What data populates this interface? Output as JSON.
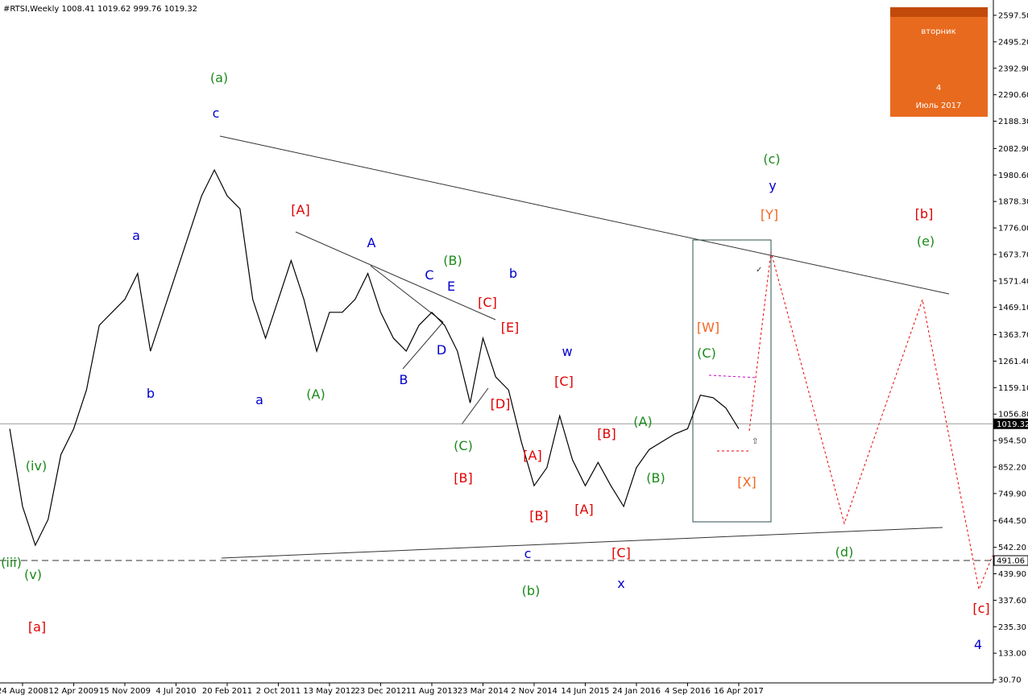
{
  "chart_data": {
    "type": "line",
    "title": "#RTSI,Weekly  1008.41 1019.62 999.76 1019.32",
    "categories": [
      null,
      "24 Aug 2008",
      null,
      null,
      null,
      "12 Apr 2009",
      null,
      null,
      null,
      "15 Nov 2009",
      null,
      null,
      null,
      "4 Jul 2010",
      null,
      null,
      null,
      "20 Feb 2011",
      null,
      null,
      null,
      "2 Oct 2011",
      null,
      null,
      null,
      "13 May 2012",
      null,
      null,
      null,
      "23 Dec 2012",
      null,
      null,
      null,
      "11 Aug 2013",
      null,
      null,
      null,
      "23 Mar 2014",
      null,
      null,
      null,
      "2 Nov 2014",
      null,
      null,
      null,
      "14 Jun 2015",
      null,
      null,
      null,
      "24 Jan 2016",
      null,
      null,
      null,
      "4 Sep 2016",
      null,
      null,
      null,
      "16 Apr 2017"
    ],
    "series": [
      {
        "color": "#000000",
        "values": [
          1000,
          700,
          550,
          650,
          900,
          1000,
          1150,
          1400,
          1450,
          1500,
          1600,
          1300,
          1450,
          1600,
          1750,
          1900,
          2000,
          1900,
          1850,
          1500,
          1350,
          1500,
          1650,
          1500,
          1300,
          1450,
          1450,
          1500,
          1600,
          1450,
          1350,
          1300,
          1400,
          1450,
          1400,
          1300,
          1100,
          1350,
          1200,
          1150,
          950,
          780,
          850,
          1050,
          880,
          780,
          870,
          780,
          700,
          850,
          920,
          950,
          980,
          1000,
          1130,
          1120,
          1080,
          1000
        ]
      }
    ],
    "ylim": [
      18.3,
      2656.6
    ],
    "yticks": [
      {
        "value": 2597.5,
        "label": "2597.50"
      },
      {
        "value": 2495.2,
        "label": "2495.20"
      },
      {
        "value": 2392.9,
        "label": "2392.90"
      },
      {
        "value": 2290.6,
        "label": "2290.60"
      },
      {
        "value": 2188.3,
        "label": "2188.30"
      },
      {
        "value": 2082.9,
        "label": "2082.90"
      },
      {
        "value": 1980.6,
        "label": "1980.60"
      },
      {
        "value": 1878.3,
        "label": "1878.30"
      },
      {
        "value": 1776,
        "label": "1776.00"
      },
      {
        "value": 1673.7,
        "label": "1673.70"
      },
      {
        "value": 1571.4,
        "label": "1571.40"
      },
      {
        "value": 1469.1,
        "label": "1469.10"
      },
      {
        "value": 1363.7,
        "label": "1363.70"
      },
      {
        "value": 1261.4,
        "label": "1261.40"
      },
      {
        "value": 1159.1,
        "label": "1159.10"
      },
      {
        "value": 1056.8,
        "label": "1056.80"
      },
      {
        "value": 954.5,
        "label": "954.50"
      },
      {
        "value": 852.2,
        "label": "852.20"
      },
      {
        "value": 749.9,
        "label": "749.90"
      },
      {
        "value": 644.5,
        "label": "644.50"
      },
      {
        "value": 542.2,
        "label": "542.20"
      },
      {
        "value": 439.9,
        "label": "439.90"
      },
      {
        "value": 337.6,
        "label": "337.60"
      },
      {
        "value": 235.3,
        "label": "235.30"
      },
      {
        "value": 133,
        "label": "133.00"
      },
      {
        "value": 30.7,
        "label": "30.70"
      }
    ],
    "levels": [
      {
        "value": 1019.32,
        "color": "#999999",
        "dashed": false
      },
      {
        "value": 491.06,
        "color": "#333333",
        "dashed": true
      }
    ],
    "annotations": [
      {
        "text": "(a)",
        "color": "#1a8a1a"
      },
      {
        "text": "c",
        "color": "#0000cc"
      },
      {
        "text": "a",
        "color": "#0000cc"
      },
      {
        "text": "b",
        "color": "#0000cc"
      },
      {
        "text": "[A]",
        "color": "#e00000"
      },
      {
        "text": "a",
        "color": "#0000cc"
      },
      {
        "text": "(A)",
        "color": "#1a8a1a"
      },
      {
        "text": "A",
        "color": "#0000cc"
      },
      {
        "text": "C",
        "color": "#0000cc"
      },
      {
        "text": "E",
        "color": "#0000cc"
      },
      {
        "text": "(B)",
        "color": "#1a8a1a"
      },
      {
        "text": "b",
        "color": "#0000cc"
      },
      {
        "text": "[C]",
        "color": "#e00000"
      },
      {
        "text": "[E]",
        "color": "#e00000"
      },
      {
        "text": "D",
        "color": "#0000cc"
      },
      {
        "text": "B",
        "color": "#0000cc"
      },
      {
        "text": "[D]",
        "color": "#e00000"
      },
      {
        "text": "(C)",
        "color": "#1a8a1a"
      },
      {
        "text": "[B]",
        "color": "#e00000"
      },
      {
        "text": "w",
        "color": "#0000cc"
      },
      {
        "text": "[C]",
        "color": "#e00000"
      },
      {
        "text": "[B]",
        "color": "#e00000"
      },
      {
        "text": "(A)",
        "color": "#1a8a1a"
      },
      {
        "text": "[A]",
        "color": "#e00000"
      },
      {
        "text": "[B]",
        "color": "#e00000"
      },
      {
        "text": "[A]",
        "color": "#e00000"
      },
      {
        "text": "(B)",
        "color": "#1a8a1a"
      },
      {
        "text": "c",
        "color": "#0000cc"
      },
      {
        "text": "[C]",
        "color": "#e00000"
      },
      {
        "text": "(b)",
        "color": "#1a8a1a"
      },
      {
        "text": "x",
        "color": "#0000cc"
      },
      {
        "text": "(c)",
        "color": "#1a8a1a"
      },
      {
        "text": "y",
        "color": "#0000cc"
      },
      {
        "text": "[Y]",
        "color": "#f26522"
      },
      {
        "text": "[W]",
        "color": "#f26522"
      },
      {
        "text": "(C)",
        "color": "#1a8a1a"
      },
      {
        "text": "[X]",
        "color": "#f26522"
      },
      {
        "text": "[b]",
        "color": "#e00000"
      },
      {
        "text": "(e)",
        "color": "#1a8a1a"
      },
      {
        "text": "(d)",
        "color": "#1a8a1a"
      },
      {
        "text": "[c]",
        "color": "#e00000"
      },
      {
        "text": "4",
        "color": "#0000cc"
      },
      {
        "text": "(iii)",
        "color": "#1a8a1a"
      },
      {
        "text": "(v)",
        "color": "#1a8a1a"
      },
      {
        "text": "(iv)",
        "color": "#1a8a1a"
      },
      {
        "text": "[a]",
        "color": "#e00000"
      }
    ]
  },
  "calendar": {
    "weekday": "вторник",
    "day": "4",
    "month": "Июль 2017"
  }
}
